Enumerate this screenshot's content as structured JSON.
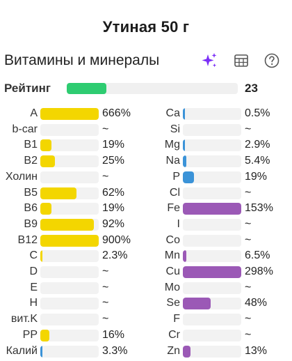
{
  "title": "Утиная 50 г",
  "section": {
    "title": "Витамины и минералы",
    "icons": [
      "sparkle-icon",
      "table-icon",
      "help-icon"
    ]
  },
  "rating": {
    "label": "Рейтинг",
    "value": "23",
    "fraction": 0.23,
    "color": "#2ecc71"
  },
  "colors": {
    "yellow": "#f3d600",
    "blue": "#3b93d8",
    "purple": "#9b59b6",
    "track": "#f2f2f2"
  },
  "vitamins": [
    {
      "label": "A",
      "value": "666%",
      "fill": 1.0,
      "color": "yellow"
    },
    {
      "label": "b-car",
      "value": "~",
      "fill": 0,
      "color": "yellow"
    },
    {
      "label": "B1",
      "value": "19%",
      "fill": 0.19,
      "color": "yellow"
    },
    {
      "label": "B2",
      "value": "25%",
      "fill": 0.25,
      "color": "yellow"
    },
    {
      "label": "Холин",
      "value": "~",
      "fill": 0,
      "color": "yellow"
    },
    {
      "label": "B5",
      "value": "62%",
      "fill": 0.62,
      "color": "yellow"
    },
    {
      "label": "B6",
      "value": "19%",
      "fill": 0.19,
      "color": "yellow"
    },
    {
      "label": "B9",
      "value": "92%",
      "fill": 0.92,
      "color": "yellow"
    },
    {
      "label": "B12",
      "value": "900%",
      "fill": 1.0,
      "color": "yellow"
    },
    {
      "label": "C",
      "value": "2.3%",
      "fill": 0.023,
      "color": "yellow"
    },
    {
      "label": "D",
      "value": "~",
      "fill": 0,
      "color": "yellow"
    },
    {
      "label": "E",
      "value": "~",
      "fill": 0,
      "color": "yellow"
    },
    {
      "label": "H",
      "value": "~",
      "fill": 0,
      "color": "yellow"
    },
    {
      "label": "вит.K",
      "value": "~",
      "fill": 0,
      "color": "yellow"
    },
    {
      "label": "PP",
      "value": "16%",
      "fill": 0.16,
      "color": "yellow"
    },
    {
      "label": "Калий",
      "value": "3.3%",
      "fill": 0.033,
      "color": "blue"
    }
  ],
  "minerals": [
    {
      "label": "Ca",
      "value": "0.5%",
      "fill": 0.005,
      "color": "blue"
    },
    {
      "label": "Si",
      "value": "~",
      "fill": 0,
      "color": "blue"
    },
    {
      "label": "Mg",
      "value": "2.9%",
      "fill": 0.029,
      "color": "blue"
    },
    {
      "label": "Na",
      "value": "5.4%",
      "fill": 0.054,
      "color": "blue"
    },
    {
      "label": "P",
      "value": "19%",
      "fill": 0.19,
      "color": "blue"
    },
    {
      "label": "Cl",
      "value": "~",
      "fill": 0,
      "color": "blue"
    },
    {
      "label": "Fe",
      "value": "153%",
      "fill": 1.0,
      "color": "purple"
    },
    {
      "label": "I",
      "value": "~",
      "fill": 0,
      "color": "purple"
    },
    {
      "label": "Co",
      "value": "~",
      "fill": 0,
      "color": "purple"
    },
    {
      "label": "Mn",
      "value": "6.5%",
      "fill": 0.065,
      "color": "purple"
    },
    {
      "label": "Cu",
      "value": "298%",
      "fill": 1.0,
      "color": "purple"
    },
    {
      "label": "Mo",
      "value": "~",
      "fill": 0,
      "color": "purple"
    },
    {
      "label": "Se",
      "value": "48%",
      "fill": 0.48,
      "color": "purple"
    },
    {
      "label": "F",
      "value": "~",
      "fill": 0,
      "color": "purple"
    },
    {
      "label": "Cr",
      "value": "~",
      "fill": 0,
      "color": "purple"
    },
    {
      "label": "Zn",
      "value": "13%",
      "fill": 0.13,
      "color": "purple"
    }
  ]
}
